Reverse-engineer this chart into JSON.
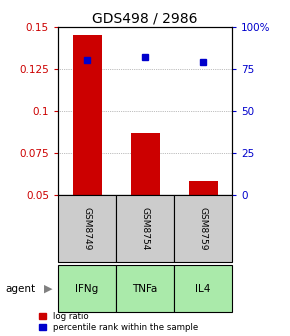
{
  "title": "GDS498 / 2986",
  "categories": [
    "IFNg",
    "TNFa",
    "IL4"
  ],
  "sample_ids": [
    "GSM8749",
    "GSM8754",
    "GSM8759"
  ],
  "log_ratio": [
    0.145,
    0.087,
    0.058
  ],
  "percentile_rank_pct": [
    0.8,
    0.82,
    0.79
  ],
  "ylim_left": [
    0.05,
    0.15
  ],
  "ylim_right": [
    0.0,
    1.0
  ],
  "yticks_left": [
    0.05,
    0.075,
    0.1,
    0.125,
    0.15
  ],
  "yticks_right": [
    0.0,
    0.25,
    0.5,
    0.75,
    1.0
  ],
  "ytick_labels_left": [
    "0.05",
    "0.075",
    "0.1",
    "0.125",
    "0.15"
  ],
  "ytick_labels_right": [
    "0",
    "25",
    "50",
    "75",
    "100%"
  ],
  "bar_color": "#cc0000",
  "scatter_color": "#0000cc",
  "cell_bg_sample": "#cccccc",
  "cell_bg_agent": "#aaeaaa",
  "legend_bar": "log ratio",
  "legend_scatter": "percentile rank within the sample",
  "title_fontsize": 10,
  "tick_fontsize": 7.5,
  "label_fontsize": 8
}
